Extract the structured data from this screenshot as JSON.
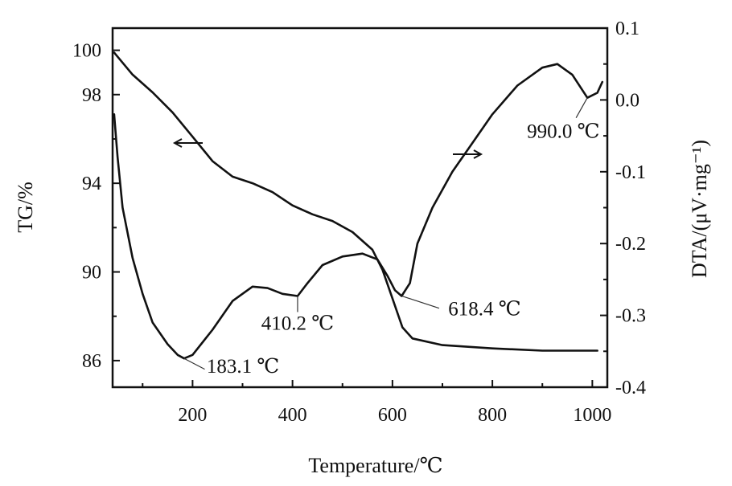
{
  "chart_data": {
    "type": "line",
    "xlabel": "Temperature/℃",
    "ylabel_left": "TG/%",
    "ylabel_right": "DTA/(μV·mg⁻¹)",
    "xlim": [
      40,
      1030
    ],
    "ylim_left": [
      84.8,
      101
    ],
    "ylim_right": [
      -0.4,
      0.1
    ],
    "x_ticks": [
      200,
      400,
      600,
      800,
      1000
    ],
    "y_left_ticks": [
      86,
      90,
      94,
      98,
      100
    ],
    "y_right_ticks": [
      0.1,
      0.0,
      -0.1,
      -0.2,
      -0.3,
      -0.4
    ],
    "y_right_tick_labels": [
      "0.1",
      "0.0",
      "-0.1",
      "-0.2",
      "-0.3",
      "-0.4"
    ],
    "grid": false,
    "series": [
      {
        "axis": "left",
        "x": [
          43,
          80,
          120,
          160,
          200,
          240,
          280,
          320,
          360,
          400,
          440,
          480,
          520,
          560,
          580,
          600,
          620,
          640,
          700,
          800,
          900,
          1010
        ],
        "y": [
          99.9,
          98.9,
          98.1,
          97.2,
          96.1,
          95.0,
          94.3,
          94.0,
          93.6,
          93.0,
          92.6,
          92.3,
          91.8,
          91.0,
          90.1,
          88.8,
          87.5,
          87.0,
          86.7,
          86.55,
          86.45,
          86.45
        ]
      },
      {
        "axis": "right",
        "x": [
          43,
          50,
          60,
          80,
          100,
          120,
          150,
          170,
          183.1,
          200,
          240,
          280,
          320,
          350,
          380,
          410.2,
          430,
          460,
          500,
          540,
          570,
          590,
          605,
          618.4,
          635,
          650,
          680,
          720,
          760,
          800,
          850,
          900,
          930,
          960,
          990,
          1010,
          1020
        ],
        "y": [
          -0.02,
          -0.08,
          -0.15,
          -0.22,
          -0.27,
          -0.31,
          -0.34,
          -0.355,
          -0.36,
          -0.355,
          -0.32,
          -0.28,
          -0.26,
          -0.262,
          -0.27,
          -0.273,
          -0.255,
          -0.23,
          -0.218,
          -0.214,
          -0.222,
          -0.245,
          -0.265,
          -0.273,
          -0.255,
          -0.2,
          -0.15,
          -0.1,
          -0.06,
          -0.02,
          0.02,
          0.045,
          0.05,
          0.035,
          0.003,
          0.01,
          0.025
        ]
      }
    ],
    "annotations": [
      {
        "text": "183.1 ℃",
        "x": 183.1
      },
      {
        "text": "410.2 ℃",
        "x": 410.2
      },
      {
        "text": "618.4 ℃",
        "x": 618.4
      },
      {
        "text": "990.0 ℃",
        "x": 990.0
      }
    ]
  }
}
